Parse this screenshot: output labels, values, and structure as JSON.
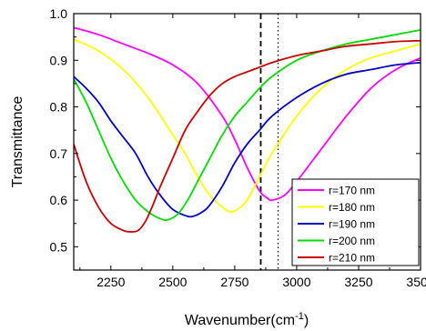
{
  "chart_data": {
    "type": "line",
    "xlabel": "Wavenumber(cm",
    "xlabel_sup": "-1",
    "xlabel_end": ")",
    "ylabel": "Transmittance",
    "xlim": [
      2100,
      3500
    ],
    "ylim": [
      0.45,
      1.0
    ],
    "xticks": [
      2250,
      2500,
      2750,
      3000,
      3250,
      3500
    ],
    "xtick_labels": [
      "2250",
      "2500",
      "2750",
      "3000",
      "3250",
      "3500"
    ],
    "yticks": [
      0.5,
      0.6,
      0.7,
      0.8,
      0.9,
      1.0
    ],
    "ytick_labels": [
      "0.5",
      "0.6",
      "0.7",
      "0.8",
      "0.9",
      "1.0"
    ],
    "legend_position": "bottom-right",
    "reference_lines": [
      {
        "x": 2855,
        "style": "dashed"
      },
      {
        "x": 2925,
        "style": "dotted"
      }
    ],
    "series": [
      {
        "name": "r=170 nm",
        "color": "#ff00ff",
        "x": [
          2100,
          2200,
          2300,
          2400,
          2500,
          2600,
          2700,
          2750,
          2800,
          2850,
          2880,
          2900,
          2950,
          3000,
          3100,
          3200,
          3300,
          3400,
          3500
        ],
        "y": [
          0.97,
          0.955,
          0.935,
          0.915,
          0.89,
          0.85,
          0.78,
          0.73,
          0.67,
          0.62,
          0.605,
          0.6,
          0.61,
          0.64,
          0.71,
          0.78,
          0.84,
          0.88,
          0.905
        ]
      },
      {
        "name": "r=180 nm",
        "color": "#ffff00",
        "x": [
          2100,
          2200,
          2300,
          2400,
          2500,
          2550,
          2600,
          2650,
          2700,
          2730,
          2760,
          2800,
          2850,
          2900,
          3000,
          3100,
          3200,
          3300,
          3400,
          3500
        ],
        "y": [
          0.945,
          0.92,
          0.88,
          0.82,
          0.74,
          0.7,
          0.65,
          0.61,
          0.585,
          0.575,
          0.58,
          0.6,
          0.65,
          0.7,
          0.78,
          0.84,
          0.88,
          0.905,
          0.92,
          0.935
        ]
      },
      {
        "name": "r=190 nm",
        "color": "#0000cc",
        "x": [
          2100,
          2150,
          2200,
          2250,
          2300,
          2350,
          2400,
          2450,
          2500,
          2550,
          2580,
          2620,
          2650,
          2700,
          2750,
          2800,
          2850,
          2900,
          3000,
          3100,
          3200,
          3300,
          3400,
          3500
        ],
        "y": [
          0.865,
          0.84,
          0.81,
          0.77,
          0.735,
          0.7,
          0.65,
          0.61,
          0.58,
          0.567,
          0.565,
          0.575,
          0.59,
          0.63,
          0.68,
          0.72,
          0.75,
          0.78,
          0.82,
          0.85,
          0.87,
          0.88,
          0.89,
          0.895
        ]
      },
      {
        "name": "r=200 nm",
        "color": "#00dd00",
        "x": [
          2100,
          2150,
          2200,
          2250,
          2300,
          2350,
          2400,
          2450,
          2480,
          2520,
          2560,
          2600,
          2650,
          2700,
          2750,
          2800,
          2850,
          2900,
          3000,
          3100,
          3200,
          3300,
          3400,
          3500
        ],
        "y": [
          0.86,
          0.81,
          0.75,
          0.69,
          0.64,
          0.6,
          0.575,
          0.56,
          0.558,
          0.57,
          0.6,
          0.64,
          0.69,
          0.74,
          0.78,
          0.81,
          0.84,
          0.865,
          0.9,
          0.92,
          0.935,
          0.945,
          0.955,
          0.965
        ]
      },
      {
        "name": "r=210 nm",
        "color": "#cc0000",
        "x": [
          2100,
          2150,
          2200,
          2250,
          2300,
          2330,
          2360,
          2390,
          2420,
          2450,
          2500,
          2550,
          2600,
          2650,
          2700,
          2750,
          2800,
          2850,
          2900,
          3000,
          3100,
          3200,
          3300,
          3400,
          3500
        ],
        "y": [
          0.72,
          0.64,
          0.585,
          0.55,
          0.535,
          0.532,
          0.535,
          0.555,
          0.59,
          0.63,
          0.69,
          0.75,
          0.79,
          0.825,
          0.85,
          0.865,
          0.875,
          0.885,
          0.895,
          0.91,
          0.92,
          0.93,
          0.935,
          0.94,
          0.942
        ]
      }
    ]
  }
}
